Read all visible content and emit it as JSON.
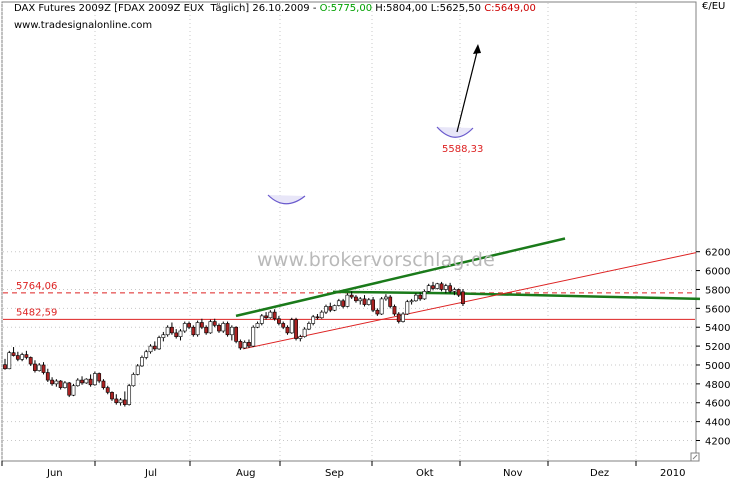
{
  "header": {
    "instrument": "DAX Futures 2009Z",
    "symbol": "[FDAX 2009Z EUX  Täglich]",
    "date": "26.10.2009",
    "open": "O:5775,00",
    "high": "H:5804,00",
    "low": "L:5625,50",
    "close": "C:5649,00"
  },
  "source": "www.tradesignalonline.com",
  "watermark": "www.brokervorschlag.de",
  "currency_label": "€/EU",
  "colors": {
    "up_candle": "#ffffff",
    "down_candle": "#aa2222",
    "support_line": "#dd2222",
    "trend_line": "#1a7a1a",
    "level_line": "#dd2222",
    "grid": "#c8c8c8"
  },
  "chart_data": {
    "type": "candlestick",
    "x_labels": [
      "Jun",
      "Jul",
      "Aug",
      "Sep",
      "Okt",
      "Nov",
      "Dez",
      "2010"
    ],
    "y_ticks": [
      4200,
      4400,
      4600,
      4800,
      5000,
      5200,
      5400,
      5600,
      5800,
      6000,
      6200
    ],
    "ylim": [
      4130,
      6330
    ],
    "y_axis_position": "right",
    "grid": true,
    "levels": [
      {
        "value": 5764.06,
        "label": "5764,06",
        "style": "dashed"
      },
      {
        "value": 5482.59,
        "label": "5482,59",
        "style": "solid"
      }
    ],
    "annotations": [
      {
        "label": "5588,33",
        "value": 5588.33
      }
    ],
    "candles": [
      [
        5003,
        5065,
        4950,
        4960
      ],
      [
        4960,
        5150,
        4955,
        5130
      ],
      [
        5130,
        5190,
        5090,
        5100
      ],
      [
        5100,
        5140,
        5040,
        5060
      ],
      [
        5060,
        5130,
        5040,
        5110
      ],
      [
        5110,
        5150,
        5060,
        5080
      ],
      [
        5080,
        5090,
        4990,
        5010
      ],
      [
        5010,
        5050,
        4920,
        4940
      ],
      [
        4940,
        5020,
        4930,
        5000
      ],
      [
        5000,
        5030,
        4900,
        4920
      ],
      [
        4920,
        4960,
        4820,
        4840
      ],
      [
        4840,
        4870,
        4780,
        4800
      ],
      [
        4800,
        4850,
        4770,
        4830
      ],
      [
        4830,
        4840,
        4740,
        4760
      ],
      [
        4760,
        4830,
        4750,
        4810
      ],
      [
        4810,
        4820,
        4660,
        4680
      ],
      [
        4680,
        4800,
        4670,
        4780
      ],
      [
        4780,
        4860,
        4770,
        4840
      ],
      [
        4840,
        4880,
        4790,
        4810
      ],
      [
        4810,
        4860,
        4800,
        4850
      ],
      [
        4850,
        4900,
        4770,
        4790
      ],
      [
        4790,
        4930,
        4780,
        4910
      ],
      [
        4910,
        4920,
        4810,
        4830
      ],
      [
        4830,
        4850,
        4740,
        4760
      ],
      [
        4760,
        4780,
        4690,
        4710
      ],
      [
        4710,
        4720,
        4620,
        4640
      ],
      [
        4640,
        4690,
        4580,
        4600
      ],
      [
        4600,
        4650,
        4570,
        4630
      ],
      [
        4630,
        4720,
        4560,
        4580
      ],
      [
        4580,
        4800,
        4570,
        4780
      ],
      [
        4780,
        4920,
        4770,
        4900
      ],
      [
        4900,
        5010,
        4890,
        4990
      ],
      [
        4990,
        5100,
        4980,
        5080
      ],
      [
        5080,
        5160,
        5060,
        5140
      ],
      [
        5140,
        5220,
        5120,
        5200
      ],
      [
        5200,
        5250,
        5150,
        5170
      ],
      [
        5170,
        5310,
        5160,
        5290
      ],
      [
        5290,
        5350,
        5250,
        5320
      ],
      [
        5320,
        5420,
        5300,
        5400
      ],
      [
        5400,
        5450,
        5320,
        5340
      ],
      [
        5340,
        5380,
        5280,
        5300
      ],
      [
        5300,
        5380,
        5260,
        5360
      ],
      [
        5360,
        5460,
        5340,
        5440
      ],
      [
        5440,
        5460,
        5380,
        5400
      ],
      [
        5400,
        5420,
        5300,
        5320
      ],
      [
        5320,
        5470,
        5300,
        5450
      ],
      [
        5450,
        5490,
        5380,
        5400
      ],
      [
        5400,
        5420,
        5320,
        5340
      ],
      [
        5340,
        5480,
        5330,
        5460
      ],
      [
        5460,
        5490,
        5400,
        5420
      ],
      [
        5420,
        5440,
        5340,
        5360
      ],
      [
        5360,
        5460,
        5340,
        5440
      ],
      [
        5440,
        5460,
        5300,
        5320
      ],
      [
        5320,
        5420,
        5260,
        5400
      ],
      [
        5400,
        5410,
        5230,
        5250
      ],
      [
        5250,
        5270,
        5160,
        5180
      ],
      [
        5180,
        5260,
        5170,
        5240
      ],
      [
        5240,
        5270,
        5180,
        5200
      ],
      [
        5200,
        5420,
        5190,
        5400
      ],
      [
        5400,
        5460,
        5390,
        5440
      ],
      [
        5440,
        5540,
        5420,
        5520
      ],
      [
        5520,
        5560,
        5480,
        5500
      ],
      [
        5500,
        5580,
        5490,
        5560
      ],
      [
        5560,
        5590,
        5470,
        5490
      ],
      [
        5490,
        5520,
        5420,
        5440
      ],
      [
        5440,
        5460,
        5380,
        5400
      ],
      [
        5400,
        5420,
        5320,
        5340
      ],
      [
        5340,
        5500,
        5330,
        5480
      ],
      [
        5480,
        5500,
        5260,
        5280
      ],
      [
        5280,
        5320,
        5250,
        5300
      ],
      [
        5300,
        5400,
        5290,
        5380
      ],
      [
        5380,
        5460,
        5370,
        5440
      ],
      [
        5440,
        5530,
        5420,
        5510
      ],
      [
        5510,
        5540,
        5480,
        5500
      ],
      [
        5500,
        5580,
        5490,
        5560
      ],
      [
        5560,
        5640,
        5540,
        5620
      ],
      [
        5620,
        5660,
        5560,
        5580
      ],
      [
        5580,
        5640,
        5570,
        5630
      ],
      [
        5630,
        5700,
        5620,
        5680
      ],
      [
        5680,
        5700,
        5600,
        5620
      ],
      [
        5620,
        5760,
        5610,
        5740
      ],
      [
        5740,
        5780,
        5700,
        5720
      ],
      [
        5720,
        5740,
        5660,
        5680
      ],
      [
        5680,
        5720,
        5640,
        5700
      ],
      [
        5700,
        5740,
        5620,
        5640
      ],
      [
        5640,
        5710,
        5630,
        5690
      ],
      [
        5690,
        5720,
        5560,
        5580
      ],
      [
        5580,
        5600,
        5520,
        5540
      ],
      [
        5540,
        5720,
        5530,
        5700
      ],
      [
        5700,
        5750,
        5680,
        5720
      ],
      [
        5720,
        5740,
        5600,
        5620
      ],
      [
        5620,
        5640,
        5520,
        5540
      ],
      [
        5540,
        5560,
        5440,
        5460
      ],
      [
        5460,
        5560,
        5450,
        5540
      ],
      [
        5540,
        5690,
        5530,
        5670
      ],
      [
        5670,
        5700,
        5640,
        5680
      ],
      [
        5680,
        5760,
        5670,
        5740
      ],
      [
        5740,
        5770,
        5680,
        5700
      ],
      [
        5700,
        5800,
        5690,
        5780
      ],
      [
        5780,
        5860,
        5770,
        5840
      ],
      [
        5840,
        5880,
        5790,
        5810
      ],
      [
        5810,
        5870,
        5800,
        5860
      ],
      [
        5860,
        5880,
        5780,
        5800
      ],
      [
        5800,
        5860,
        5760,
        5840
      ],
      [
        5840,
        5870,
        5760,
        5780
      ],
      [
        5780,
        5820,
        5740,
        5800
      ],
      [
        5800,
        5810,
        5720,
        5740
      ],
      [
        5775,
        5804,
        5625,
        5649
      ]
    ],
    "lines": [
      {
        "name": "",
        "points": [
          [
            5520,
            5520
          ],
          [
            6340,
            6340
          ]
        ]
      },
      {
        "name": "",
        "points": [
          [
            5764,
            5764
          ],
          [
            5700,
            5700
          ]
        ]
      },
      {
        "name": "",
        "points": [
          [
            5170,
            5170
          ],
          [
            6190,
            6190
          ]
        ]
      }
    ]
  }
}
